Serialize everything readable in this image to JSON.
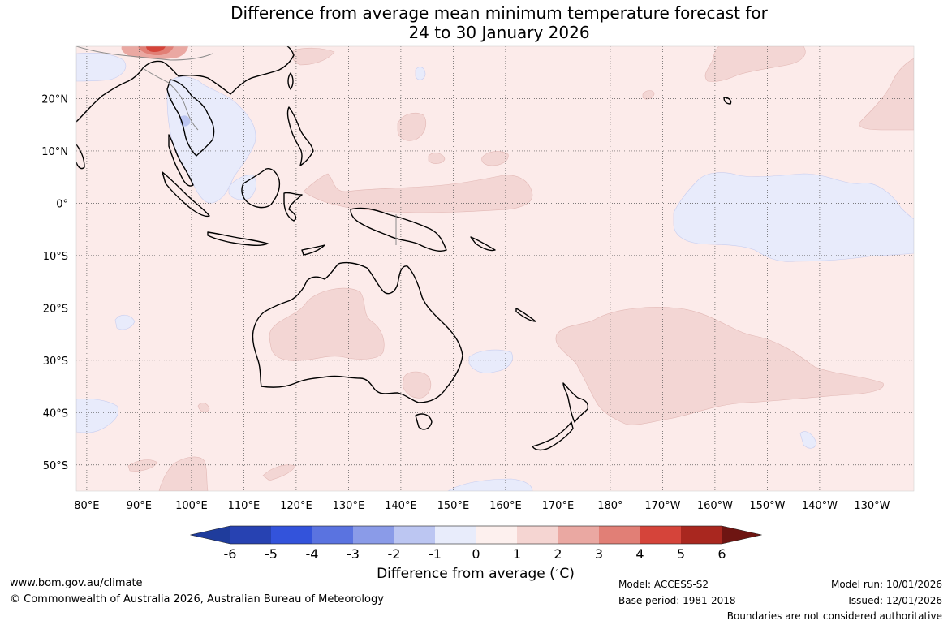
{
  "title": {
    "line1": "Difference from average mean minimum temperature forecast for",
    "line2": "24 to 30 January 2026"
  },
  "map": {
    "lat_labels": [
      "20°N",
      "10°N",
      "0°",
      "10°S",
      "20°S",
      "30°S",
      "40°S",
      "50°S"
    ],
    "lat_values": [
      20,
      10,
      0,
      -10,
      -20,
      -30,
      -40,
      -50
    ],
    "lon_labels": [
      "80°E",
      "90°E",
      "100°E",
      "110°E",
      "120°E",
      "130°E",
      "140°E",
      "150°E",
      "160°E",
      "170°E",
      "180°",
      "170°W",
      "160°W",
      "150°W",
      "140°W",
      "130°W"
    ],
    "lon_values": [
      80,
      90,
      100,
      110,
      120,
      130,
      140,
      150,
      160,
      170,
      180,
      190,
      200,
      210,
      220,
      230
    ],
    "lon_range": [
      78,
      238
    ],
    "lat_range": [
      -55,
      30
    ]
  },
  "colorbar": {
    "ticks": [
      "-6",
      "-5",
      "-4",
      "-3",
      "-2",
      "-1",
      "0",
      "1",
      "2",
      "3",
      "4",
      "5",
      "6"
    ],
    "colors": [
      "#1f3c9c",
      "#2742b2",
      "#3353db",
      "#5a73e0",
      "#8a9be8",
      "#bcc6f2",
      "#e8ecfb",
      "#fdf0ee",
      "#f5d5d2",
      "#eaa8a2",
      "#e17f76",
      "#d5443a",
      "#a9271f",
      "#6e1512"
    ],
    "label": "Difference from average (°C)",
    "label_text": "Difference from average (",
    "label_unit": "C)"
  },
  "footer": {
    "website": "www.bom.gov.au/climate",
    "copyright": "© Commonwealth of Australia 2026, Australian Bureau of Meteorology",
    "model": "Model: ACCESS-S2",
    "base_period": "Base period: 1981-2018",
    "model_run": "Model run: 10/01/2026",
    "issued": "Issued: 12/01/2026",
    "disclaimer": "Boundaries are not considered authoritative"
  }
}
